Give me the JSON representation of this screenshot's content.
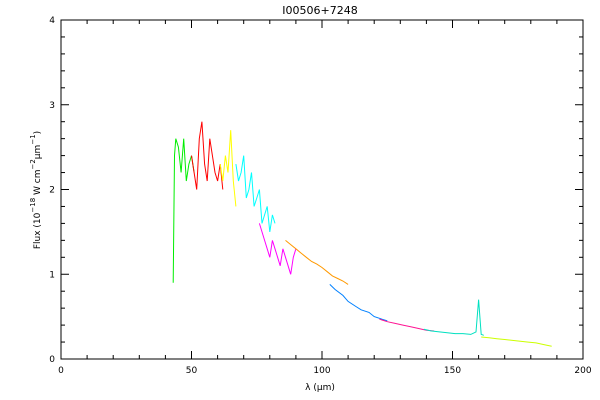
{
  "chart_data": {
    "type": "line",
    "title": "I00506+7248",
    "xlabel": {
      "main": "λ (",
      "mu": "μ",
      "unit": "m)"
    },
    "ylabel": {
      "prefix": "Flux (10",
      "exp1": "−18",
      "mid": " W cm",
      "exp2": "−2",
      "mu": "μ",
      "m": "m",
      "exp3": "−1",
      "suffix": ")"
    },
    "xlim": [
      0,
      200
    ],
    "ylim": [
      0,
      4
    ],
    "x_ticks": [
      0,
      50,
      100,
      150,
      200
    ],
    "y_ticks": [
      0,
      1,
      2,
      3,
      4
    ],
    "x_tick_labels": [
      "0",
      "50",
      "100",
      "150",
      "200"
    ],
    "y_tick_labels": [
      "0",
      "1",
      "2",
      "3",
      "4"
    ],
    "grid": false,
    "series": [
      {
        "color": "#00ee00",
        "x": [
          43.0,
          43.5,
          44.0,
          45.0,
          46.0,
          47.0,
          48.0,
          49.0,
          50.0,
          51.0
        ],
        "y": [
          0.9,
          2.4,
          2.6,
          2.5,
          2.2,
          2.6,
          2.1,
          2.3,
          2.4,
          2.2
        ]
      },
      {
        "color": "#ff0000",
        "x": [
          50.0,
          51.0,
          52.0,
          53.0,
          54.0,
          55.0,
          56.0,
          57.0,
          58.0,
          59.0,
          60.0,
          61.0,
          62.0
        ],
        "y": [
          2.4,
          2.2,
          2.0,
          2.6,
          2.8,
          2.3,
          2.1,
          2.6,
          2.4,
          2.2,
          2.1,
          2.3,
          2.0
        ]
      },
      {
        "color": "#ffff00",
        "x": [
          61.0,
          62.0,
          63.0,
          64.0,
          65.0,
          66.0,
          67.0
        ],
        "y": [
          2.3,
          2.1,
          2.4,
          2.2,
          2.7,
          2.1,
          1.8
        ]
      },
      {
        "color": "#00ffff",
        "x": [
          67.0,
          68.0,
          69.0,
          70.0,
          71.0,
          72.0,
          73.0,
          74.0,
          75.0,
          76.0,
          77.0,
          78.0,
          79.0,
          80.0,
          81.0,
          82.0
        ],
        "y": [
          2.3,
          2.1,
          2.2,
          2.4,
          1.9,
          2.0,
          2.2,
          1.8,
          1.9,
          2.0,
          1.6,
          1.7,
          1.8,
          1.5,
          1.7,
          1.6
        ]
      },
      {
        "color": "#ff00ff",
        "x": [
          76.0,
          77.0,
          78.0,
          79.0,
          80.0,
          81.0,
          82.0,
          83.0,
          84.0,
          85.0,
          86.0,
          87.0,
          88.0,
          89.0,
          90.0
        ],
        "y": [
          1.6,
          1.5,
          1.4,
          1.3,
          1.2,
          1.4,
          1.3,
          1.2,
          1.1,
          1.3,
          1.2,
          1.1,
          1.0,
          1.2,
          1.3
        ]
      },
      {
        "color": "#ff9900",
        "x": [
          86.0,
          88.0,
          90.0,
          92.0,
          94.0,
          96.0,
          98.0,
          100.0,
          102.0,
          104.0,
          106.0,
          108.0,
          110.0
        ],
        "y": [
          1.4,
          1.35,
          1.3,
          1.25,
          1.2,
          1.15,
          1.12,
          1.08,
          1.03,
          0.98,
          0.95,
          0.92,
          0.88
        ]
      },
      {
        "color": "#0080ff",
        "x": [
          103.0,
          105.0,
          108.0,
          110.0,
          113.0,
          115.0,
          118.0,
          120.0,
          123.0,
          125.0
        ],
        "y": [
          0.88,
          0.82,
          0.75,
          0.68,
          0.62,
          0.58,
          0.55,
          0.5,
          0.47,
          0.45
        ]
      },
      {
        "color": "#ff1493",
        "x": [
          122.0,
          125.0,
          128.0,
          131.0,
          134.0,
          137.0,
          140.0,
          143.0
        ],
        "y": [
          0.47,
          0.44,
          0.42,
          0.4,
          0.38,
          0.36,
          0.34,
          0.33
        ]
      },
      {
        "color": "#00e0c0",
        "x": [
          139.0,
          142.0,
          145.0,
          148.0,
          151.0,
          154.0,
          157.0,
          159.0,
          160.0,
          161.0,
          162.0
        ],
        "y": [
          0.35,
          0.33,
          0.32,
          0.31,
          0.3,
          0.3,
          0.29,
          0.32,
          0.7,
          0.29,
          0.28
        ]
      },
      {
        "color": "#ccff00",
        "x": [
          161.0,
          164.0,
          167.0,
          170.0,
          173.0,
          176.0,
          179.0,
          182.0,
          185.0,
          188.0
        ],
        "y": [
          0.26,
          0.25,
          0.24,
          0.23,
          0.22,
          0.21,
          0.2,
          0.19,
          0.17,
          0.15
        ]
      }
    ]
  }
}
